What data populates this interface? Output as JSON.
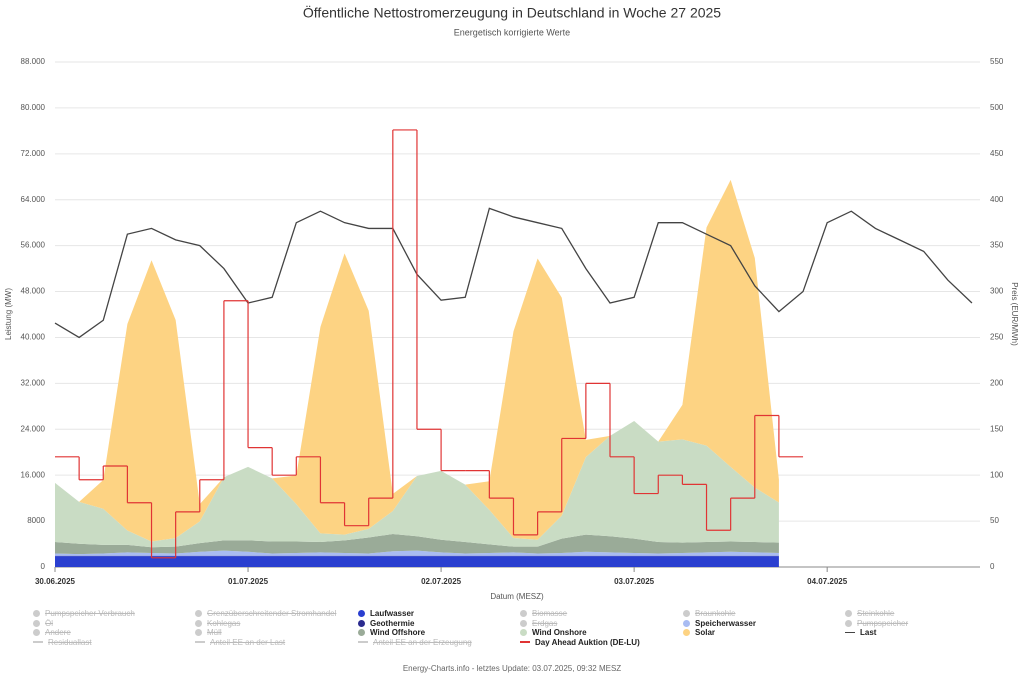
{
  "chart_data": {
    "type": "area",
    "title": "Öffentliche Nettostromerzeugung in Deutschland in Woche 27 2025",
    "subtitle": "Energetisch korrigierte Werte",
    "xlabel": "Datum (MESZ)",
    "ylabel": "Leistung (MW)",
    "y2label": "Preis (EUR/MWh)",
    "footer": "Energy-Charts.info - letztes Update: 03.07.2025, 09:32 MESZ",
    "xlim": [
      0,
      115
    ],
    "xticks": [
      {
        "value": 0,
        "label": "30.06.2025"
      },
      {
        "value": 24,
        "label": "01.07.2025"
      },
      {
        "value": 48,
        "label": "02.07.2025"
      },
      {
        "value": 72,
        "label": "03.07.2025"
      },
      {
        "value": 96,
        "label": "04.07.2025"
      }
    ],
    "ylim": [
      0,
      88000
    ],
    "yticks": [
      {
        "value": 0,
        "label": "0"
      },
      {
        "value": 8000,
        "label": "8000"
      },
      {
        "value": 16000,
        "label": "16.000"
      },
      {
        "value": 24000,
        "label": "24.000"
      },
      {
        "value": 32000,
        "label": "32.000"
      },
      {
        "value": 40000,
        "label": "40.000"
      },
      {
        "value": 48000,
        "label": "48.000"
      },
      {
        "value": 56000,
        "label": "56.000"
      },
      {
        "value": 64000,
        "label": "64.000"
      },
      {
        "value": 72000,
        "label": "72.000"
      },
      {
        "value": 80000,
        "label": "80.000"
      },
      {
        "value": 88000,
        "label": "88.000"
      }
    ],
    "y2lim": [
      0,
      550
    ],
    "y2ticks": [
      0,
      50,
      100,
      150,
      200,
      250,
      300,
      350,
      400,
      450,
      500,
      550
    ],
    "grid": true,
    "x": [
      0,
      3,
      6,
      9,
      12,
      15,
      18,
      21,
      24,
      27,
      30,
      33,
      36,
      39,
      42,
      45,
      48,
      51,
      54,
      57,
      60,
      63,
      66,
      69,
      72,
      75,
      78,
      81,
      84,
      87,
      90
    ],
    "series": [
      {
        "name": "Pumpspeicher Verbrauch",
        "hidden": true,
        "symbol": "dot"
      },
      {
        "name": "Grenzüberschreitender Stromhandel",
        "hidden": true,
        "symbol": "dot"
      },
      {
        "name": "Laufwasser",
        "color": "#2a3fd0",
        "symbol": "dot",
        "kind": "area",
        "values": [
          1900,
          1900,
          1900,
          1900,
          1900,
          1900,
          1900,
          1900,
          1900,
          1900,
          1900,
          1900,
          1900,
          1900,
          1900,
          1900,
          1900,
          1900,
          1900,
          1900,
          1900,
          1900,
          1900,
          1900,
          1900,
          1900,
          1900,
          1900,
          1900,
          1900,
          1900
        ]
      },
      {
        "name": "Biomasse",
        "hidden": true,
        "symbol": "dot"
      },
      {
        "name": "Braunkohle",
        "hidden": true,
        "symbol": "dot"
      },
      {
        "name": "Steinkohle",
        "hidden": true,
        "symbol": "dot"
      },
      {
        "name": "Öl",
        "hidden": true,
        "symbol": "dot"
      },
      {
        "name": "Kohlegas",
        "hidden": true,
        "symbol": "dot"
      },
      {
        "name": "Geothermie",
        "color": "#2b2b8f",
        "symbol": "dot",
        "kind": "area",
        "values": [
          50,
          50,
          50,
          50,
          50,
          50,
          50,
          50,
          50,
          50,
          50,
          50,
          50,
          50,
          50,
          50,
          50,
          50,
          50,
          50,
          50,
          50,
          50,
          50,
          50,
          50,
          50,
          50,
          50,
          50,
          50
        ]
      },
      {
        "name": "Erdgas",
        "hidden": true,
        "symbol": "dot"
      },
      {
        "name": "Speicherwasser",
        "color": "#a9bcf2",
        "symbol": "dot",
        "kind": "area",
        "values": [
          400,
          300,
          400,
          600,
          500,
          400,
          700,
          900,
          700,
          400,
          500,
          600,
          500,
          400,
          800,
          900,
          600,
          400,
          500,
          600,
          400,
          500,
          700,
          600,
          500,
          400,
          500,
          600,
          700,
          600,
          500
        ]
      },
      {
        "name": "Pumpspeicher",
        "hidden": true,
        "symbol": "dot"
      },
      {
        "name": "Andere",
        "hidden": true,
        "symbol": "dot"
      },
      {
        "name": "Müll",
        "hidden": true,
        "symbol": "dot"
      },
      {
        "name": "Wind Offshore",
        "color": "#9aab98",
        "symbol": "dot",
        "kind": "area",
        "values": [
          2000,
          1800,
          1500,
          1300,
          1000,
          1200,
          1500,
          1800,
          2000,
          2100,
          2000,
          1800,
          2200,
          2800,
          3000,
          2500,
          2200,
          2000,
          1500,
          1000,
          1200,
          2500,
          3000,
          2800,
          2500,
          2000,
          1800,
          1800,
          1800,
          1800,
          1800
        ]
      },
      {
        "name": "Wind Onshore",
        "color": "#c9dcc4",
        "symbol": "dot",
        "kind": "area",
        "values": [
          10300,
          7300,
          6300,
          2500,
          1000,
          1500,
          3800,
          11000,
          12800,
          11000,
          6500,
          1500,
          1000,
          1500,
          4000,
          10500,
          12000,
          10000,
          6000,
          1500,
          1200,
          4000,
          13500,
          17500,
          20500,
          17500,
          18000,
          16800,
          13000,
          9500,
          7000
        ]
      },
      {
        "name": "Solar",
        "color": "#fdd383",
        "symbol": "dot",
        "kind": "area",
        "values": [
          0,
          0,
          5000,
          36000,
          49000,
          38000,
          3000,
          0,
          0,
          0,
          5000,
          36000,
          49000,
          38000,
          3000,
          0,
          0,
          0,
          5000,
          36000,
          49000,
          38000,
          3000,
          0,
          0,
          0,
          6000,
          38000,
          50000,
          40000,
          4000
        ]
      },
      {
        "name": "Last",
        "color": "#444444",
        "symbol": "line",
        "kind": "line",
        "x": [
          0,
          3,
          6,
          9,
          12,
          15,
          18,
          21,
          24,
          27,
          30,
          33,
          36,
          39,
          42,
          45,
          48,
          51,
          54,
          57,
          60,
          63,
          66,
          69,
          72,
          75,
          78,
          81,
          84,
          87,
          90,
          93,
          96,
          99,
          102,
          105,
          108,
          111,
          114
        ],
        "values": [
          42500,
          40000,
          43000,
          58000,
          59000,
          57000,
          56000,
          52000,
          46000,
          47000,
          60000,
          62000,
          60000,
          59000,
          59000,
          51000,
          46500,
          47000,
          62500,
          61000,
          60000,
          59000,
          52000,
          46000,
          47000,
          60000,
          60000,
          58000,
          56000,
          49000,
          44500,
          48000,
          60000,
          62000,
          59000,
          57000,
          55000,
          50000,
          46000
        ]
      },
      {
        "name": "Residuallast",
        "hidden": true,
        "symbol": "line"
      },
      {
        "name": "Anteil EE an der Last",
        "hidden": true,
        "symbol": "line"
      },
      {
        "name": "Anteil EE an der Erzeugung",
        "hidden": true,
        "symbol": "line"
      },
      {
        "name": "Day Ahead Auktion (DE-LU)",
        "color": "#e03434",
        "symbol": "line",
        "kind": "step",
        "axis": "y2",
        "values": [
          120,
          95,
          110,
          70,
          10,
          60,
          95,
          290,
          130,
          100,
          120,
          70,
          45,
          75,
          476,
          150,
          105,
          105,
          75,
          35,
          60,
          140,
          200,
          120,
          80,
          100,
          90,
          40,
          75,
          165,
          120
        ]
      }
    ]
  }
}
